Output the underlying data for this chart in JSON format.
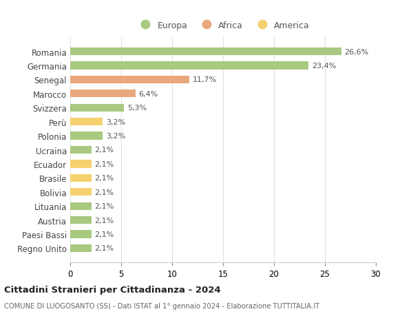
{
  "categories": [
    "Romania",
    "Germania",
    "Senegal",
    "Marocco",
    "Svizzera",
    "Perù",
    "Polonia",
    "Ucraina",
    "Ecuador",
    "Brasile",
    "Bolivia",
    "Lituania",
    "Austria",
    "Paesi Bassi",
    "Regno Unito"
  ],
  "values": [
    26.6,
    23.4,
    11.7,
    6.4,
    5.3,
    3.2,
    3.2,
    2.1,
    2.1,
    2.1,
    2.1,
    2.1,
    2.1,
    2.1,
    2.1
  ],
  "labels": [
    "26,6%",
    "23,4%",
    "11,7%",
    "6,4%",
    "5,3%",
    "3,2%",
    "3,2%",
    "2,1%",
    "2,1%",
    "2,1%",
    "2,1%",
    "2,1%",
    "2,1%",
    "2,1%",
    "2,1%"
  ],
  "continents": [
    "Europa",
    "Europa",
    "Africa",
    "Africa",
    "Europa",
    "America",
    "Europa",
    "Europa",
    "America",
    "America",
    "America",
    "Europa",
    "Europa",
    "Europa",
    "Europa"
  ],
  "colors": {
    "Europa": "#a8c97f",
    "Africa": "#e8a87c",
    "America": "#f5d06e"
  },
  "legend_order": [
    "Europa",
    "Africa",
    "America"
  ],
  "xlim": [
    0,
    30
  ],
  "xticks": [
    0,
    5,
    10,
    15,
    20,
    25,
    30
  ],
  "title": "Cittadini Stranieri per Cittadinanza - 2024",
  "subtitle": "COMUNE DI LUOGOSANTO (SS) - Dati ISTAT al 1° gennaio 2024 - Elaborazione TUTTITALIA.IT",
  "background_color": "#ffffff",
  "grid_color": "#e0e0e0"
}
